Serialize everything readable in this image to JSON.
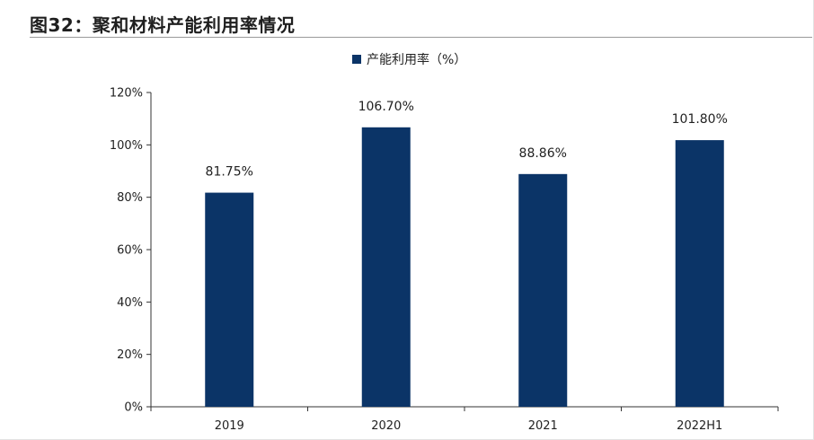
{
  "figure_title": "图32：聚和材料产能利用率情况",
  "colors": {
    "bar": "#0b3467",
    "axis": "#333333",
    "text": "#222222",
    "rule": "#9a9a9a"
  },
  "chart_data": {
    "type": "bar",
    "title": "",
    "xlabel": "",
    "ylabel": "",
    "categories": [
      "2019",
      "2020",
      "2021",
      "2022H1"
    ],
    "series": [
      {
        "name": "产能利用率（%）",
        "values": [
          81.75,
          106.7,
          88.86,
          101.8
        ],
        "data_labels": [
          "81.75%",
          "106.70%",
          "88.86%",
          "101.80%"
        ]
      }
    ],
    "ylim": [
      0,
      120
    ],
    "yticks": [
      0,
      20,
      40,
      60,
      80,
      100,
      120
    ],
    "ytick_labels": [
      "0%",
      "20%",
      "40%",
      "60%",
      "80%",
      "100%",
      "120%"
    ],
    "grid": false,
    "legend_position": "top-center"
  }
}
